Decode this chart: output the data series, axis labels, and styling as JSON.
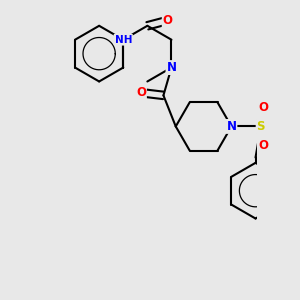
{
  "bg_color": "#e8e8e8",
  "atom_colors": {
    "N": "#0000ff",
    "O": "#ff0000",
    "S": "#cccc00",
    "C": "#000000",
    "H": "#5aadad"
  },
  "bond_color": "#000000",
  "bond_width": 1.5,
  "dbo": 0.06,
  "r": 0.52,
  "xlim": [
    -1.6,
    2.4
  ],
  "ylim": [
    -3.5,
    2.0
  ]
}
